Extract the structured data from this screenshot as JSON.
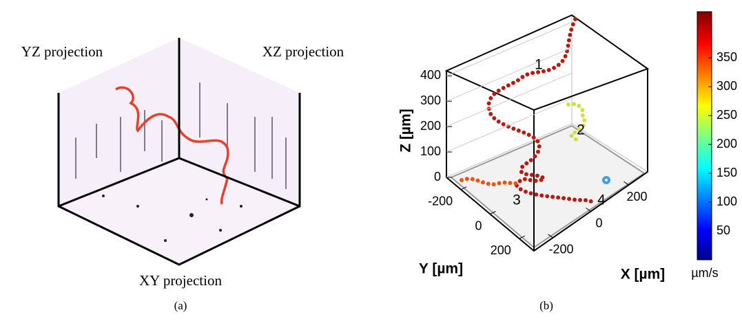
{
  "panel_a": {
    "yz_label": "YZ projection",
    "xz_label": "XZ projection",
    "xy_label": "XY projection",
    "caption": "(a)"
  },
  "panel_b": {
    "type": "scatter3d",
    "z_label": "Z [µm]",
    "y_label": "Y [µm]",
    "x_label": "X [µm]",
    "zlim": [
      0,
      420
    ],
    "zticks": [
      0,
      100,
      200,
      300,
      400
    ],
    "ylim": [
      -300,
      300
    ],
    "yticks": [
      -200,
      0,
      200
    ],
    "xlim": [
      -300,
      300
    ],
    "xticks": [
      -200,
      0,
      200
    ],
    "annotations": [
      "1",
      "2",
      "3",
      "4"
    ],
    "colorbar": {
      "lim": [
        0,
        430
      ],
      "ticks": [
        50,
        100,
        150,
        200,
        250,
        300,
        350
      ],
      "label": "µm/s"
    },
    "caption": "(b)"
  }
}
